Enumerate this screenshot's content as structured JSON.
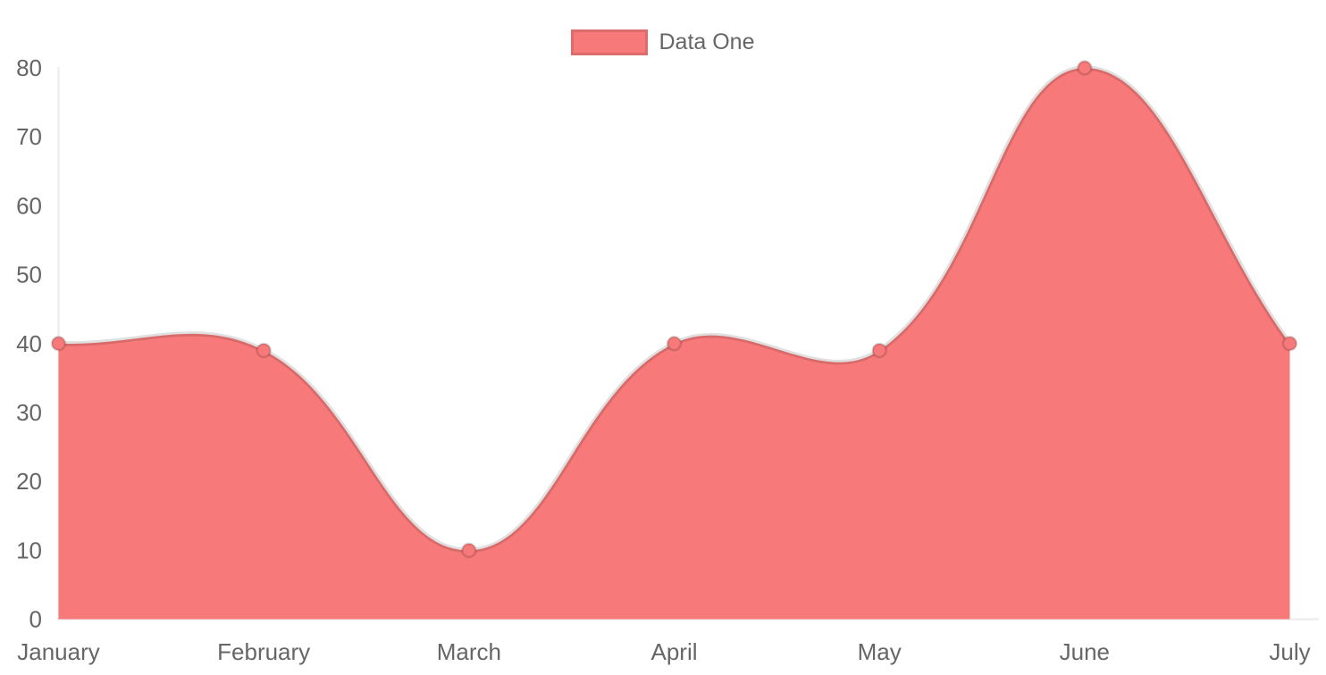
{
  "chart_data": {
    "type": "area",
    "title": "",
    "categories": [
      "January",
      "February",
      "March",
      "April",
      "May",
      "June",
      "July"
    ],
    "series": [
      {
        "name": "Data One",
        "values": [
          40,
          39,
          10,
          40,
          39,
          80,
          40
        ]
      }
    ],
    "xlabel": "",
    "ylabel": "",
    "ylim": [
      0,
      80
    ],
    "yticks": [
      0,
      10,
      20,
      30,
      40,
      50,
      60,
      70,
      80
    ],
    "grid": false,
    "legend_position": "top",
    "line_tension": 0.4,
    "smooth": true,
    "colors": {
      "fill": "#f87979",
      "point_fill": "#f87979",
      "point_border": "rgba(0,0,0,0.15)",
      "line_stroke": "rgba(0,0,0,0.12)",
      "axis_line": "rgba(0,0,0,0.08)",
      "tick_text": "#666666",
      "legend_box_border": "rgba(0,0,0,0.1)",
      "background": "#ffffff"
    }
  },
  "legend": {
    "label": "Data One"
  }
}
